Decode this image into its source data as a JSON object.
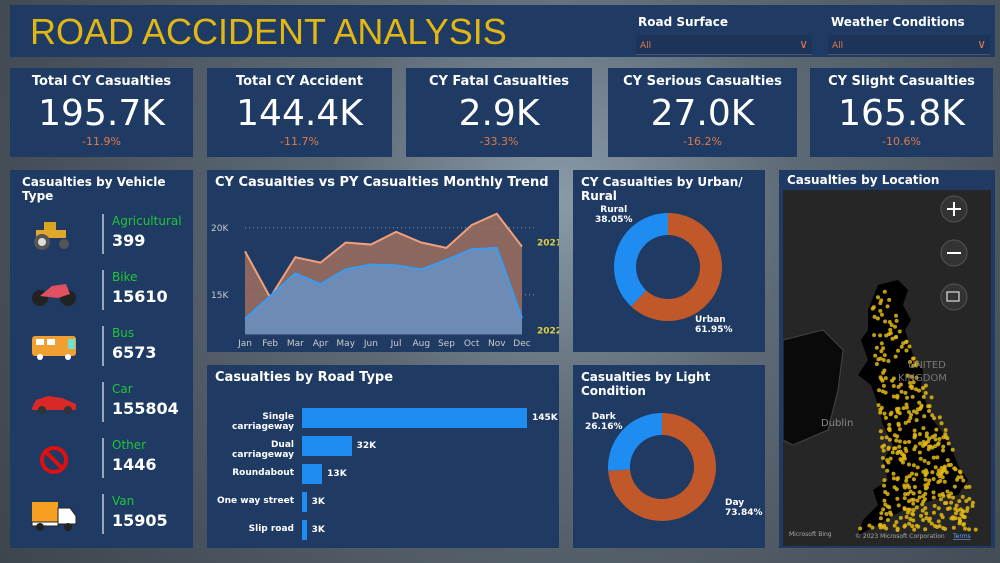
{
  "header": {
    "title": "ROAD ACCIDENT ANALYSIS"
  },
  "filters": [
    {
      "label": "Road Surface",
      "value": "All"
    },
    {
      "label": "Weather Conditions",
      "value": "All"
    }
  ],
  "kpis": [
    {
      "label": "Total CY Casualties",
      "value": "195.7K",
      "change": "-11.9%"
    },
    {
      "label": "Total CY Accident",
      "value": "144.4K",
      "change": "-11.7%"
    },
    {
      "label": "CY Fatal Casualties",
      "value": "2.9K",
      "change": "-33.3%"
    },
    {
      "label": "CY Serious Casualties",
      "value": "27.0K",
      "change": "-16.2%"
    },
    {
      "label": "CY Slight Casualties",
      "value": "165.8K",
      "change": "-10.6%"
    }
  ],
  "vehicles": {
    "title": "Casualties by Vehicle Type",
    "items": [
      {
        "name": "Agricultural",
        "count": "399",
        "icon": "tractor-icon"
      },
      {
        "name": "Bike",
        "count": "15610",
        "icon": "motorbike-icon"
      },
      {
        "name": "Bus",
        "count": "6573",
        "icon": "bus-icon"
      },
      {
        "name": "Car",
        "count": "155804",
        "icon": "car-icon"
      },
      {
        "name": "Other",
        "count": "1446",
        "icon": "prohibited-icon"
      },
      {
        "name": "Van",
        "count": "15905",
        "icon": "van-icon"
      }
    ]
  },
  "chart_data": [
    {
      "type": "area",
      "title": "CY Casualties vs PY Casualties Monthly Trend",
      "categories": [
        "Jan",
        "Feb",
        "Mar",
        "Apr",
        "May",
        "Jun",
        "Jul",
        "Aug",
        "Sep",
        "Oct",
        "Nov",
        "Dec"
      ],
      "yticks": [
        "15K",
        "20K"
      ],
      "ylim": [
        12000,
        22000
      ],
      "grid": true,
      "series": [
        {
          "name": "2021",
          "color": "#f0a07a",
          "values": [
            18250,
            14800,
            17800,
            17400,
            18900,
            18750,
            19700,
            18900,
            18500,
            20200,
            21050,
            18600
          ]
        },
        {
          "name": "2022",
          "color": "#3a9cf0",
          "values": [
            13200,
            14900,
            16600,
            15800,
            16900,
            17250,
            17200,
            16900,
            17600,
            18400,
            18500,
            13250
          ]
        }
      ]
    },
    {
      "type": "bar",
      "title": "Casualties by Road Type",
      "orientation": "horizontal",
      "categories": [
        "Single carriageway",
        "Dual carriageway",
        "Roundabout",
        "One way street",
        "Slip road"
      ],
      "values": [
        145000,
        32000,
        13000,
        3000,
        3000
      ],
      "labels": [
        "145K",
        "32K",
        "13K",
        "3K",
        "3K"
      ],
      "color": "#1e8cf0"
    },
    {
      "type": "pie",
      "title": "CY Casualties by Urban/ Rural",
      "donut": true,
      "slices": [
        {
          "name": "Urban",
          "value": 61.95,
          "label": "61.95%",
          "color": "#c0582a"
        },
        {
          "name": "Rural",
          "value": 38.05,
          "label": "38.05%",
          "color": "#1e8cf0"
        }
      ]
    },
    {
      "type": "pie",
      "title": "Casualties by Light Condition",
      "donut": true,
      "slices": [
        {
          "name": "Day",
          "value": 73.84,
          "label": "73.84%",
          "color": "#c0582a"
        },
        {
          "name": "Dark",
          "value": 26.16,
          "label": "26.16%",
          "color": "#1e8cf0"
        }
      ]
    }
  ],
  "map": {
    "title": "Casualties by Location",
    "country_label_1": "UNITED",
    "country_label_2": "KINGDOM",
    "city": "Dublin",
    "attribution": "Microsoft Bing",
    "copyright": "© 2023 Microsoft Corporation",
    "terms": "Terms",
    "dot_color": "#e2b714"
  }
}
